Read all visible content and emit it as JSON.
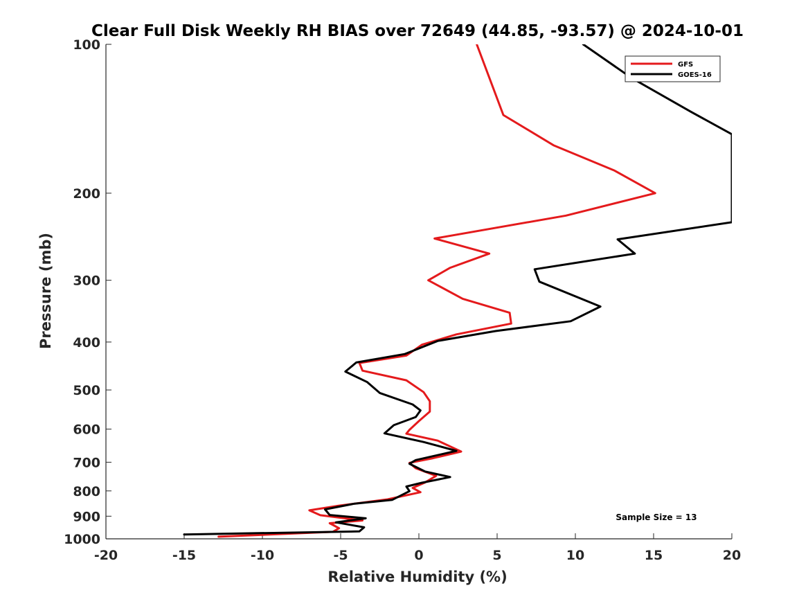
{
  "chart_data": {
    "type": "line",
    "title": "Clear Full Disk Weekly RH BIAS over 72649 (44.85, -93.57) @ 2024-10-01",
    "xlabel": "Relative Humidity (%)",
    "ylabel": "Pressure (mb)",
    "xlim": [
      -20,
      20
    ],
    "ylim": [
      100,
      1000
    ],
    "yscale": "log",
    "y_reversed": true,
    "xticks": [
      -20,
      -15,
      -10,
      -5,
      0,
      5,
      10,
      15,
      20
    ],
    "xtick_labels": [
      "-20",
      "-15",
      "-10",
      "-5",
      "0",
      "5",
      "10",
      "15",
      "20"
    ],
    "yticks": [
      100,
      200,
      300,
      400,
      500,
      600,
      700,
      800,
      900,
      1000
    ],
    "ytick_labels": [
      "100",
      "200",
      "300",
      "400",
      "500",
      "600",
      "700",
      "800",
      "900",
      "1000"
    ],
    "grid": false,
    "legend_position": "top-right",
    "series": [
      {
        "name": "GFS",
        "color": "#e41a1c",
        "points": [
          [
            3.7,
            100
          ],
          [
            5.4,
            139
          ],
          [
            8.6,
            160
          ],
          [
            12.5,
            180
          ],
          [
            15.1,
            200
          ],
          [
            9.4,
            222
          ],
          [
            1.0,
            247
          ],
          [
            4.5,
            265
          ],
          [
            2.0,
            283
          ],
          [
            0.6,
            300
          ],
          [
            2.8,
            327
          ],
          [
            5.8,
            349
          ],
          [
            5.9,
            367
          ],
          [
            2.4,
            386
          ],
          [
            0.2,
            405
          ],
          [
            -0.8,
            426
          ],
          [
            -3.8,
            441
          ],
          [
            -3.6,
            457
          ],
          [
            -0.8,
            478
          ],
          [
            0.3,
            505
          ],
          [
            0.7,
            527
          ],
          [
            0.7,
            553
          ],
          [
            0.0,
            578
          ],
          [
            -0.6,
            602
          ],
          [
            -0.8,
            613
          ],
          [
            1.2,
            633
          ],
          [
            2.7,
            666
          ],
          [
            0.9,
            687
          ],
          [
            -0.6,
            702
          ],
          [
            -0.2,
            720
          ],
          [
            1.1,
            746
          ],
          [
            0.4,
            769
          ],
          [
            -0.4,
            789
          ],
          [
            0.1,
            805
          ],
          [
            -2.0,
            832
          ],
          [
            -5.1,
            857
          ],
          [
            -7.0,
            876
          ],
          [
            -6.3,
            896
          ],
          [
            -3.6,
            918
          ],
          [
            -5.7,
            930
          ],
          [
            -5.1,
            952
          ],
          [
            -5.5,
            968
          ],
          [
            -12.8,
            990
          ]
        ]
      },
      {
        "name": "GOES-16",
        "color": "#000000",
        "points": [
          [
            10.5,
            100
          ],
          [
            13.6,
            117
          ],
          [
            17.4,
            137
          ],
          [
            20.0,
            152
          ],
          [
            20.0,
            229
          ],
          [
            12.7,
            248
          ],
          [
            13.8,
            265
          ],
          [
            7.4,
            285
          ],
          [
            7.7,
            302
          ],
          [
            11.6,
            339
          ],
          [
            9.7,
            363
          ],
          [
            4.9,
            380
          ],
          [
            1.2,
            398
          ],
          [
            -0.9,
            423
          ],
          [
            -4.0,
            440
          ],
          [
            -4.7,
            459
          ],
          [
            -3.3,
            482
          ],
          [
            -2.5,
            507
          ],
          [
            -0.4,
            535
          ],
          [
            0.1,
            550
          ],
          [
            -0.2,
            567
          ],
          [
            -1.6,
            589
          ],
          [
            -2.2,
            612
          ],
          [
            0.3,
            637
          ],
          [
            2.4,
            664
          ],
          [
            -0.2,
            693
          ],
          [
            -0.6,
            705
          ],
          [
            0.4,
            731
          ],
          [
            2.0,
            750
          ],
          [
            0.2,
            770
          ],
          [
            -0.8,
            784
          ],
          [
            -0.6,
            801
          ],
          [
            -1.7,
            834
          ],
          [
            -4.1,
            849
          ],
          [
            -6.0,
            872
          ],
          [
            -5.7,
            895
          ],
          [
            -3.4,
            909
          ],
          [
            -5.3,
            926
          ],
          [
            -3.5,
            948
          ],
          [
            -3.8,
            966
          ],
          [
            -15.0,
            980
          ]
        ]
      }
    ],
    "annotation": "Sample Size = 13"
  }
}
